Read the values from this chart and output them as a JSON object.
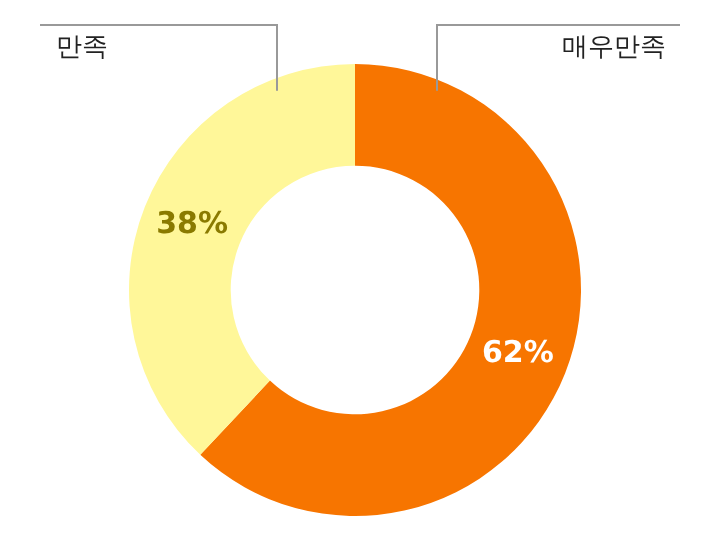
{
  "chart_data": {
    "type": "donut",
    "categories": [
      "매우만족",
      "만족"
    ],
    "values": [
      62,
      38
    ],
    "colors": [
      "#f77500",
      "#fff799"
    ],
    "value_labels": [
      "62%",
      "38%"
    ],
    "legend": false
  }
}
